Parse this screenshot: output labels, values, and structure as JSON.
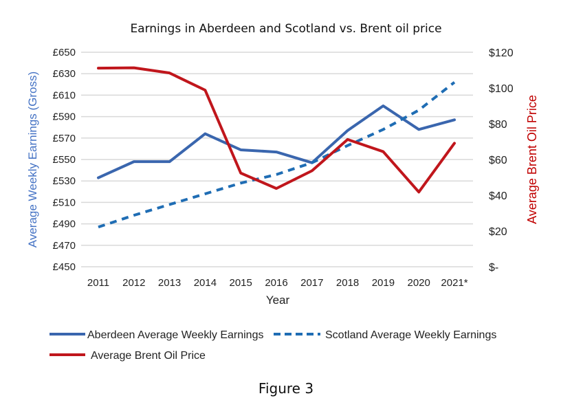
{
  "chart_data": {
    "type": "line",
    "title": "Earnings in Aberdeen and Scotland vs. Brent oil price",
    "xlabel": "Year",
    "ylabel_left": "Average Weekly Earnings (Gross)",
    "ylabel_right": "Average Brent Oil Price",
    "categories": [
      "2011",
      "2012",
      "2013",
      "2014",
      "2015",
      "2016",
      "2017",
      "2018",
      "2019",
      "2020",
      "2021*"
    ],
    "y_left": {
      "min": 450,
      "max": 650,
      "step": 20,
      "ticks": [
        "£450",
        "£470",
        "£490",
        "£510",
        "£530",
        "£550",
        "£570",
        "£590",
        "£610",
        "£630",
        "£650"
      ]
    },
    "y_right": {
      "min": 0,
      "max": 120,
      "step": 20,
      "ticks": [
        "$-",
        "$20",
        "$40",
        "$60",
        "$80",
        "$100",
        "$120"
      ]
    },
    "grid": true,
    "legend_placement": "bottom",
    "series": [
      {
        "name": "Aberdeen Average Weekly Earnings",
        "axis": "left",
        "style": "solid",
        "color": "#3A66AE",
        "values": [
          533,
          548,
          548,
          574,
          559,
          557,
          547,
          577,
          600,
          578,
          587
        ]
      },
      {
        "name": "Scotland Average Weekly Earnings",
        "axis": "left",
        "style": "dashed",
        "color": "#1F6DB4",
        "values": [
          487,
          498,
          508,
          518,
          528,
          536,
          547,
          563,
          578,
          596,
          622
        ]
      },
      {
        "name": "Average Brent Oil Price",
        "axis": "right",
        "style": "solid",
        "color": "#C0161C",
        "values": [
          111.1,
          111.3,
          108.4,
          98.8,
          52.4,
          43.8,
          53.7,
          71.2,
          64.4,
          41.8,
          69.1
        ]
      }
    ],
    "colors": {
      "left_axis_label": "#4472C4",
      "right_axis_label": "#C00000",
      "grid": "#D9D9D9"
    }
  },
  "caption": "Figure 3"
}
